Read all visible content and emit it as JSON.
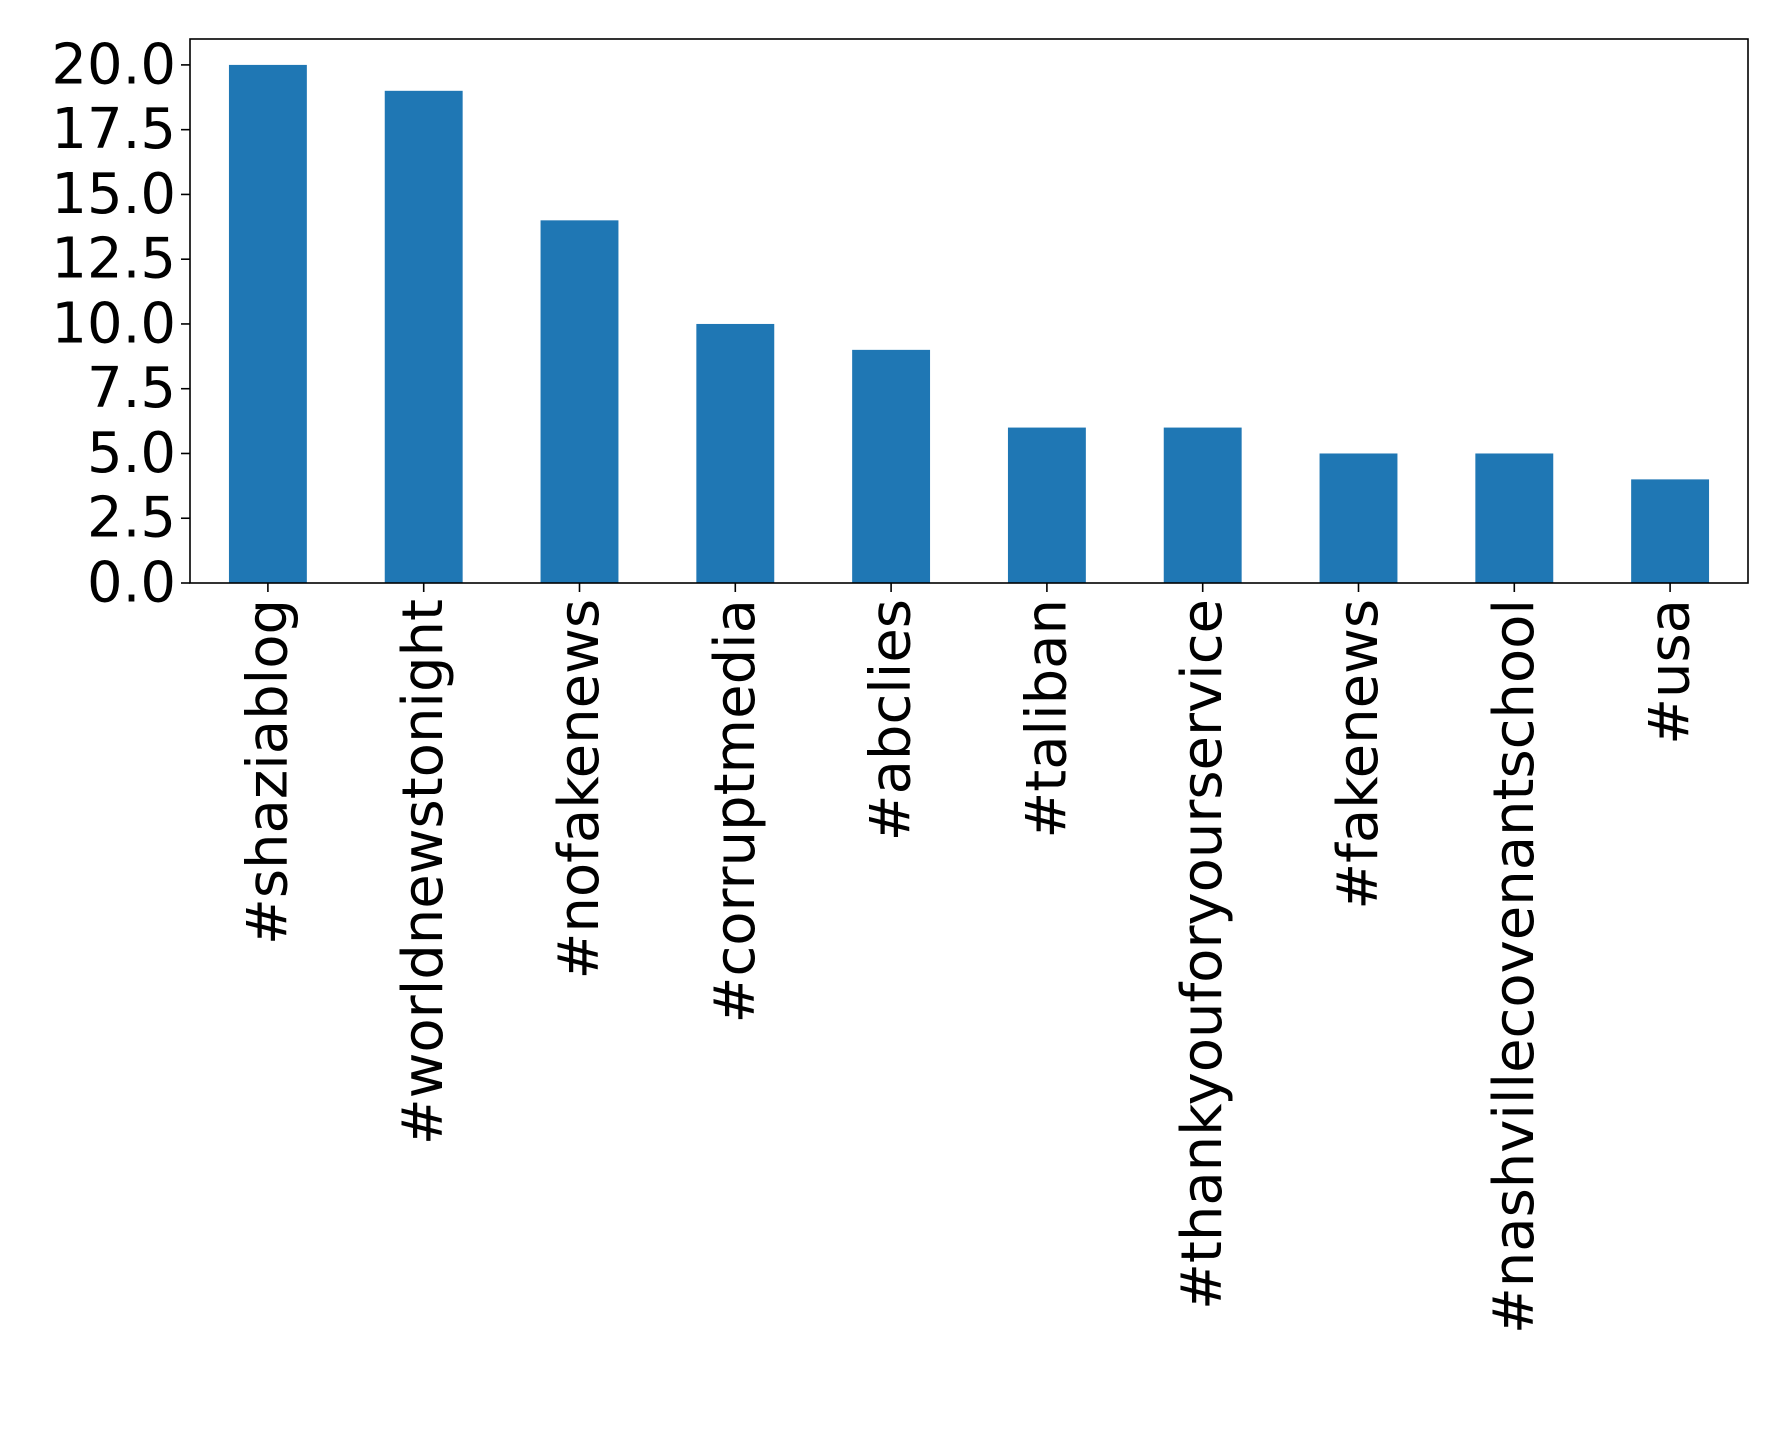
{
  "chart_data": {
    "type": "bar",
    "title": "",
    "xlabel": "",
    "ylabel": "",
    "categories": [
      "#shaziablog",
      "#worldnewstonight",
      "#nofakenews",
      "#corruptmedia",
      "#abclies",
      "#taliban",
      "#thankyouforyourservice",
      "#fakenews",
      "#nashvillecovenantschool",
      "#usa"
    ],
    "values": [
      20,
      19,
      14,
      10,
      9,
      6,
      6,
      5,
      5,
      4
    ],
    "ylim": [
      0,
      21
    ],
    "yticks": [
      0,
      2.5,
      5,
      7.5,
      10,
      12.5,
      15,
      17.5,
      20
    ],
    "ytick_labels": [
      "0.0",
      "2.5",
      "5.0",
      "7.5",
      "10.0",
      "12.5",
      "15.0",
      "17.5",
      "20.0"
    ],
    "bar_color": "#1f77b4",
    "grid": false,
    "legend": "none",
    "x_tick_rotation": "vertical"
  }
}
